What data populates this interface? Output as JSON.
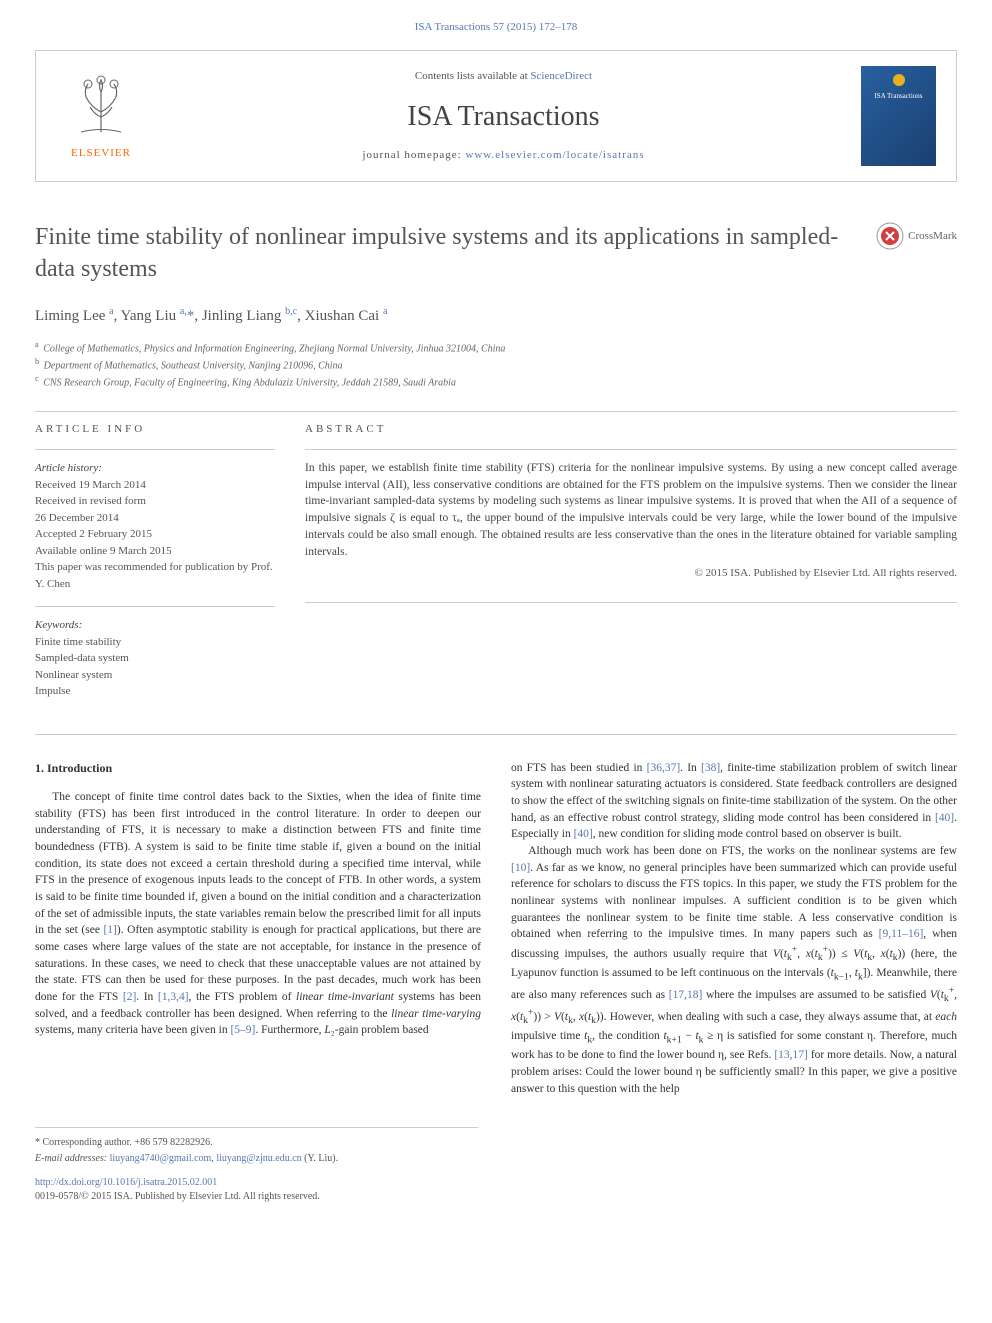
{
  "header_link": "ISA Transactions 57 (2015) 172–178",
  "masthead": {
    "contents_prefix": "Contents lists available at ",
    "contents_link": "ScienceDirect",
    "journal": "ISA Transactions",
    "homepage_prefix": "journal homepage: ",
    "homepage_link": "www.elsevier.com/locate/isatrans",
    "publisher": "ELSEVIER",
    "cover_line1": "ISA Transactions"
  },
  "title": "Finite time stability of nonlinear impulsive systems and its applications in sampled-data systems",
  "crossmark": "CrossMark",
  "authors_html": "Liming Lee <sup>a</sup>, Yang Liu <sup>a,</sup><span class='corr'>*</span>, Jinling Liang <sup>b,c</sup>, Xiushan Cai <sup>a</sup>",
  "affiliations": {
    "a": "College of Mathematics, Physics and Information Engineering, Zhejiang Normal University, Jinhua 321004, China",
    "b": "Department of Mathematics, Southeast University, Nanjing 210096, China",
    "c": "CNS Research Group, Faculty of Engineering, King Abdulaziz University, Jeddah 21589, Saudi Arabia"
  },
  "article_info": {
    "label": "ARTICLE INFO",
    "history_heading": "Article history:",
    "history": [
      "Received 19 March 2014",
      "Received in revised form",
      "26 December 2014",
      "Accepted 2 February 2015",
      "Available online 9 March 2015",
      "This paper was recommended for publication by Prof. Y. Chen"
    ],
    "keywords_heading": "Keywords:",
    "keywords": [
      "Finite time stability",
      "Sampled-data system",
      "Nonlinear system",
      "Impulse"
    ]
  },
  "abstract": {
    "label": "ABSTRACT",
    "text": "In this paper, we establish finite time stability (FTS) criteria for the nonlinear impulsive systems. By using a new concept called average impulse interval (AII), less conservative conditions are obtained for the FTS problem on the impulsive systems. Then we consider the linear time-invariant sampled-data systems by modeling such systems as linear impulsive systems. It is proved that when the AII of a sequence of impulsive signals ζ is equal to τₐ, the upper bound of the impulsive intervals could be very large, while the lower bound of the impulsive intervals could be also small enough. The obtained results are less conservative than the ones in the literature obtained for variable sampling intervals.",
    "copyright": "© 2015 ISA. Published by Elsevier Ltd. All rights reserved."
  },
  "introduction": {
    "heading": "1. Introduction",
    "col1_para1": "The concept of finite time control dates back to the Sixties, when the idea of finite time stability (FTS) has been first introduced in the control literature. In order to deepen our understanding of FTS, it is necessary to make a distinction between FTS and finite time boundedness (FTB). A system is said to be finite time stable if, given a bound on the initial condition, its state does not exceed a certain threshold during a specified time interval, while FTS in the presence of exogenous inputs leads to the concept of FTB. In other words, a system is said to be finite time bounded if, given a bound on the initial condition and a characterization of the set of admissible inputs, the state variables remain below the prescribed limit for all inputs in the set (see <span class='ref-link'>[1]</span>). Often asymptotic stability is enough for practical applications, but there are some cases where large values of the state are not acceptable, for instance in the presence of saturations. In these cases, we need to check that these unacceptable values are not attained by the state. FTS can then be used for these purposes. In the past decades, much work has been done for the FTS <span class='ref-link'>[2]</span>. In <span class='ref-link'>[1,3,4]</span>, the FTS problem of <span class='ital'>linear time-invariant</span> systems has been solved, and a feedback controller has been designed. When referring to the <span class='ital'>linear time-varying</span> systems, many criteria have been given in <span class='ref-link'>[5–9]</span>. Furthermore, <span class='ital'>L</span>₂-gain problem based",
    "col2_para1": "on FTS has been studied in <span class='ref-link'>[36,37]</span>. In <span class='ref-link'>[38]</span>, finite-time stabilization problem of switch linear system with nonlinear saturating actuators is considered. State feedback controllers are designed to show the effect of the switching signals on finite-time stabilization of the system. On the other hand, as an effective robust control strategy, sliding mode control has been considered in <span class='ref-link'>[40]</span>. Especially in <span class='ref-link'>[40]</span>, new condition for sliding mode control based on observer is built.",
    "col2_para2": "Although much work has been done on FTS, the works on the nonlinear systems are few <span class='ref-link'>[10]</span>. As far as we know, no general principles have been summarized which can provide useful reference for scholars to discuss the FTS topics. In this paper, we study the FTS problem for the nonlinear systems with nonlinear impulses. A sufficient condition is to be given which guarantees the nonlinear system to be finite time stable. A less conservative condition is obtained when referring to the impulsive times. In many papers such as <span class='ref-link'>[9,11–16]</span>, when discussing impulses, the authors usually require that <span class='ital'>V</span>(<span class='ital'>t</span><sub>k</sub><sup>+</sup>, <span class='ital'>x</span>(<span class='ital'>t</span><sub>k</sub><sup>+</sup>)) ≤ <span class='ital'>V</span>(<span class='ital'>t</span><sub>k</sub>, <span class='ital'>x</span>(<span class='ital'>t</span><sub>k</sub>)) (here, the Lyapunov function is assumed to be left continuous on the intervals (<span class='ital'>t</span><sub>k−1</sub>, <span class='ital'>t</span><sub>k</sub>]). Meanwhile, there are also many references such as <span class='ref-link'>[17,18]</span> where the impulses are assumed to be satisfied <span class='ital'>V</span>(<span class='ital'>t</span><sub>k</sub><sup>+</sup>, <span class='ital'>x</span>(<span class='ital'>t</span><sub>k</sub><sup>+</sup>)) &gt; <span class='ital'>V</span>(<span class='ital'>t</span><sub>k</sub>, <span class='ital'>x</span>(<span class='ital'>t</span><sub>k</sub>)). However, when dealing with such a case, they always assume that, at <span class='ital'>each</span> impulsive time <span class='ital'>t</span><sub>k</sub>, the condition <span class='ital'>t</span><sub>k+1</sub> − <span class='ital'>t</span><sub>k</sub> ≥ η is satisfied for some constant η. Therefore, much work has to be done to find the lower bound η, see Refs. <span class='ref-link'>[13,17]</span> for more details. Now, a natural problem arises: Could the lower bound η be sufficiently small? In this paper, we give a positive answer to this question with the help"
  },
  "footnotes": {
    "corr": "* Corresponding author. +86 579 82282926.",
    "email_label": "E-mail addresses: ",
    "email1": "liuyang4740@gmail.com",
    "email2": "liuyang@zjnu.edu.cn",
    "email_suffix": " (Y. Liu).",
    "doi": "http://dx.doi.org/10.1016/j.isatra.2015.02.001",
    "issn": "0019-0578/© 2015 ISA. Published by Elsevier Ltd. All rights reserved."
  },
  "colors": {
    "link": "#5878b0",
    "text": "#333333",
    "muted": "#555555",
    "orange": "#ff6600",
    "border": "#cccccc",
    "cover_bg": "#2860a0"
  },
  "typography": {
    "body_pt": 11.5,
    "title_pt": 24,
    "journal_pt": 28,
    "small_pt": 11,
    "tiny_pt": 10
  }
}
